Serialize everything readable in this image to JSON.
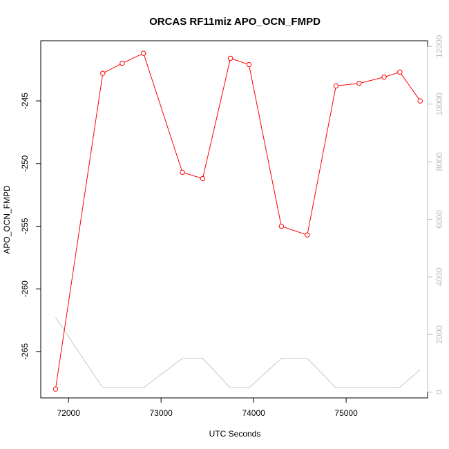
{
  "chart_data": {
    "type": "line",
    "title": "ORCAS RF11miz APO_OCN_FMPD",
    "xlabel": "UTC Seconds",
    "ylabel": "APO_OCN_FMPD",
    "xlim": [
      71700,
      75880
    ],
    "ylim": [
      -268.7,
      -240.2
    ],
    "y2lim": [
      -200,
      12200
    ],
    "xticks": [
      72000,
      73000,
      74000,
      75000
    ],
    "xtick_labels": [
      "72000",
      "73000",
      "74000",
      "75000"
    ],
    "yticks": [
      -265,
      -260,
      -255,
      -250,
      -245
    ],
    "ytick_labels": [
      "-265",
      "-260",
      "-255",
      "-250",
      "-245"
    ],
    "y2ticks": [
      0,
      2000,
      4000,
      6000,
      8000,
      10000,
      12000
    ],
    "y2tick_labels": [
      "0",
      "2000",
      "4000",
      "6000",
      "8000",
      "10000",
      "12000"
    ],
    "grid": false,
    "series": [
      {
        "axis": "left",
        "color": "#ff0000",
        "marker": "open-circle",
        "x": [
          71860,
          72370,
          72580,
          72810,
          73230,
          73450,
          73750,
          73950,
          74300,
          74580,
          74890,
          75140,
          75410,
          75580,
          75800
        ],
        "y": [
          -268.0,
          -242.8,
          -242.0,
          -241.2,
          -250.7,
          -251.2,
          -241.6,
          -242.1,
          -255.0,
          -255.7,
          -243.8,
          -243.6,
          -243.1,
          -242.7,
          -245.0
        ]
      },
      {
        "axis": "right",
        "color": "#c8c8c8",
        "marker": "none",
        "x": [
          71860,
          72370,
          72580,
          72810,
          73230,
          73450,
          73750,
          73950,
          74300,
          74580,
          74890,
          75140,
          75410,
          75580,
          75800
        ],
        "y": [
          2600,
          150,
          150,
          150,
          1170,
          1170,
          150,
          150,
          1170,
          1170,
          150,
          150,
          150,
          170,
          780
        ]
      }
    ]
  }
}
